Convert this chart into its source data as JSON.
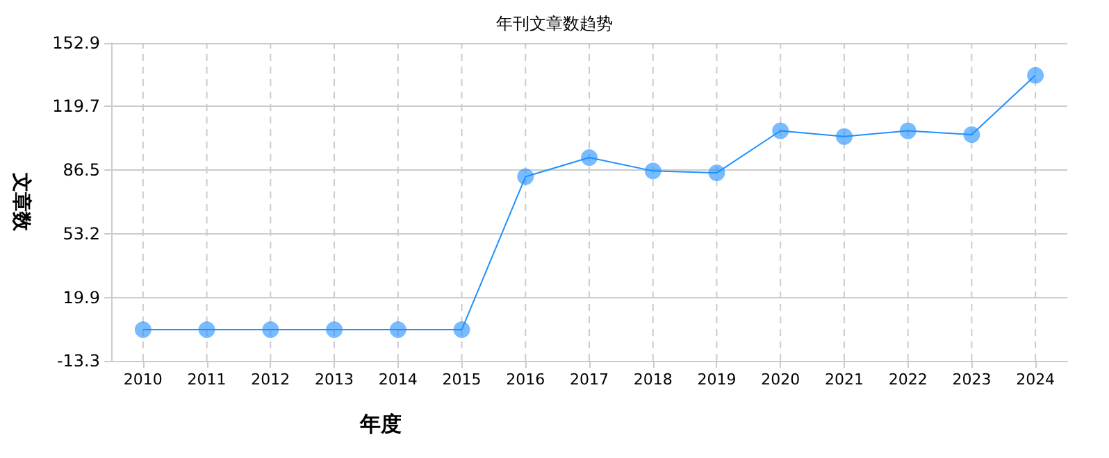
{
  "chart_data": {
    "type": "line",
    "title": "年刊文章数趋势",
    "xlabel": "年度",
    "ylabel": "文章数",
    "categories": [
      "2010",
      "2011",
      "2012",
      "2013",
      "2014",
      "2015",
      "2016",
      "2017",
      "2018",
      "2019",
      "2020",
      "2021",
      "2022",
      "2023",
      "2024"
    ],
    "series": [
      {
        "color": "#1e90ff",
        "values": [
          3,
          3,
          3,
          3,
          3,
          3,
          83,
          93,
          86,
          85,
          107,
          104,
          107,
          105,
          136
        ]
      }
    ],
    "ylim": [
      -13.3,
      152.9
    ],
    "yticks": [
      -13.3,
      19.9,
      53.2,
      86.5,
      119.7,
      152.9
    ],
    "grid": true,
    "marker": "circle",
    "line_style": "solid"
  }
}
